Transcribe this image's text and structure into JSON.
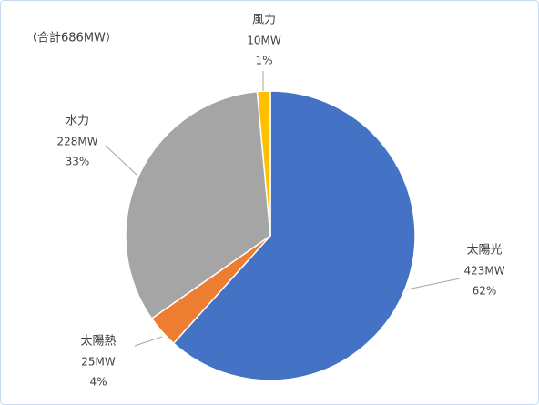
{
  "chart_data": {
    "type": "pie",
    "annotation": "（合計686MW）",
    "categories": [
      "太陽光",
      "太陽熱",
      "水力",
      "風力"
    ],
    "values": [
      423,
      25,
      228,
      10
    ],
    "value_labels": [
      "423MW",
      "25MW",
      "228MW",
      "10MW"
    ],
    "percent_labels": [
      "62%",
      "4%",
      "33%",
      "1%"
    ],
    "colors": [
      "#4472c4",
      "#ed7d31",
      "#a5a5a5",
      "#ffc000"
    ]
  }
}
